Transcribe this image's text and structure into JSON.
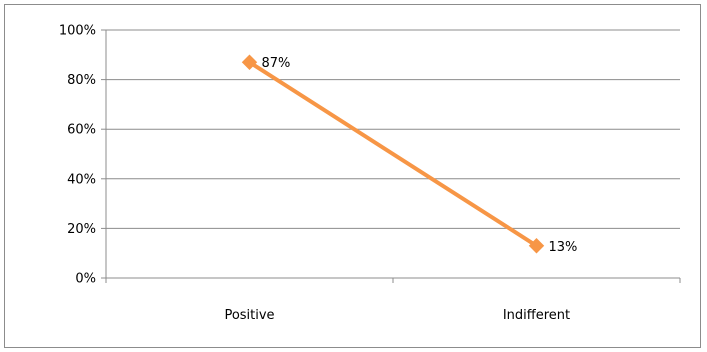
{
  "chart_data": {
    "type": "line",
    "title": "",
    "xlabel": "",
    "ylabel": "",
    "categories": [
      "Positive",
      "Indifferent"
    ],
    "series": [
      {
        "values": [
          0.87,
          0.13
        ],
        "data_labels": [
          "87%",
          "13%"
        ],
        "color": "#f79646",
        "marker": "diamond"
      }
    ],
    "ylim": [
      0,
      1
    ],
    "yticks": [
      0,
      0.2,
      0.4,
      0.6,
      0.8,
      1
    ],
    "ytick_labels": [
      "0%",
      "20%",
      "40%",
      "60%",
      "80%",
      "100%"
    ],
    "grid": true,
    "legend": "none"
  },
  "colors": {
    "gridline": "#8c8c8c",
    "axis": "#8c8c8c",
    "frame": "#8c8c8c"
  }
}
